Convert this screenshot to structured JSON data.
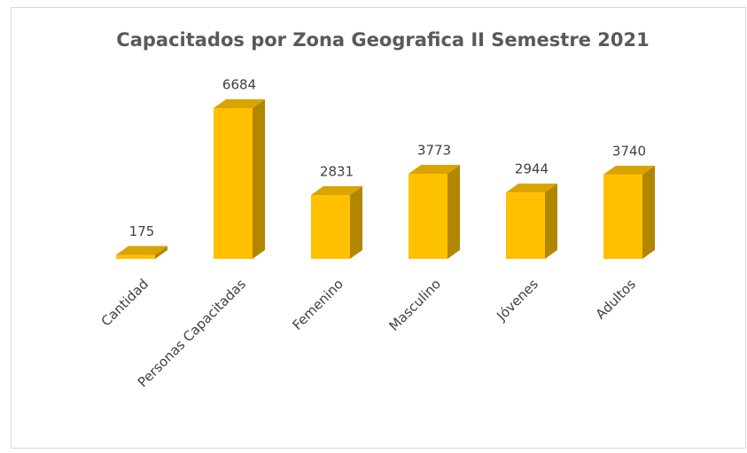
{
  "chart_data": {
    "type": "bar3d",
    "title": "Capacitados por Zona Geografica II Semestre 2021",
    "categories": [
      "Cantidad",
      "Personas Capacitadas",
      "Femenino",
      "Masculino",
      "Jóvenes",
      "Adultos"
    ],
    "values": [
      175,
      6684,
      2831,
      3773,
      2944,
      3740
    ],
    "color": "#FFC000"
  }
}
